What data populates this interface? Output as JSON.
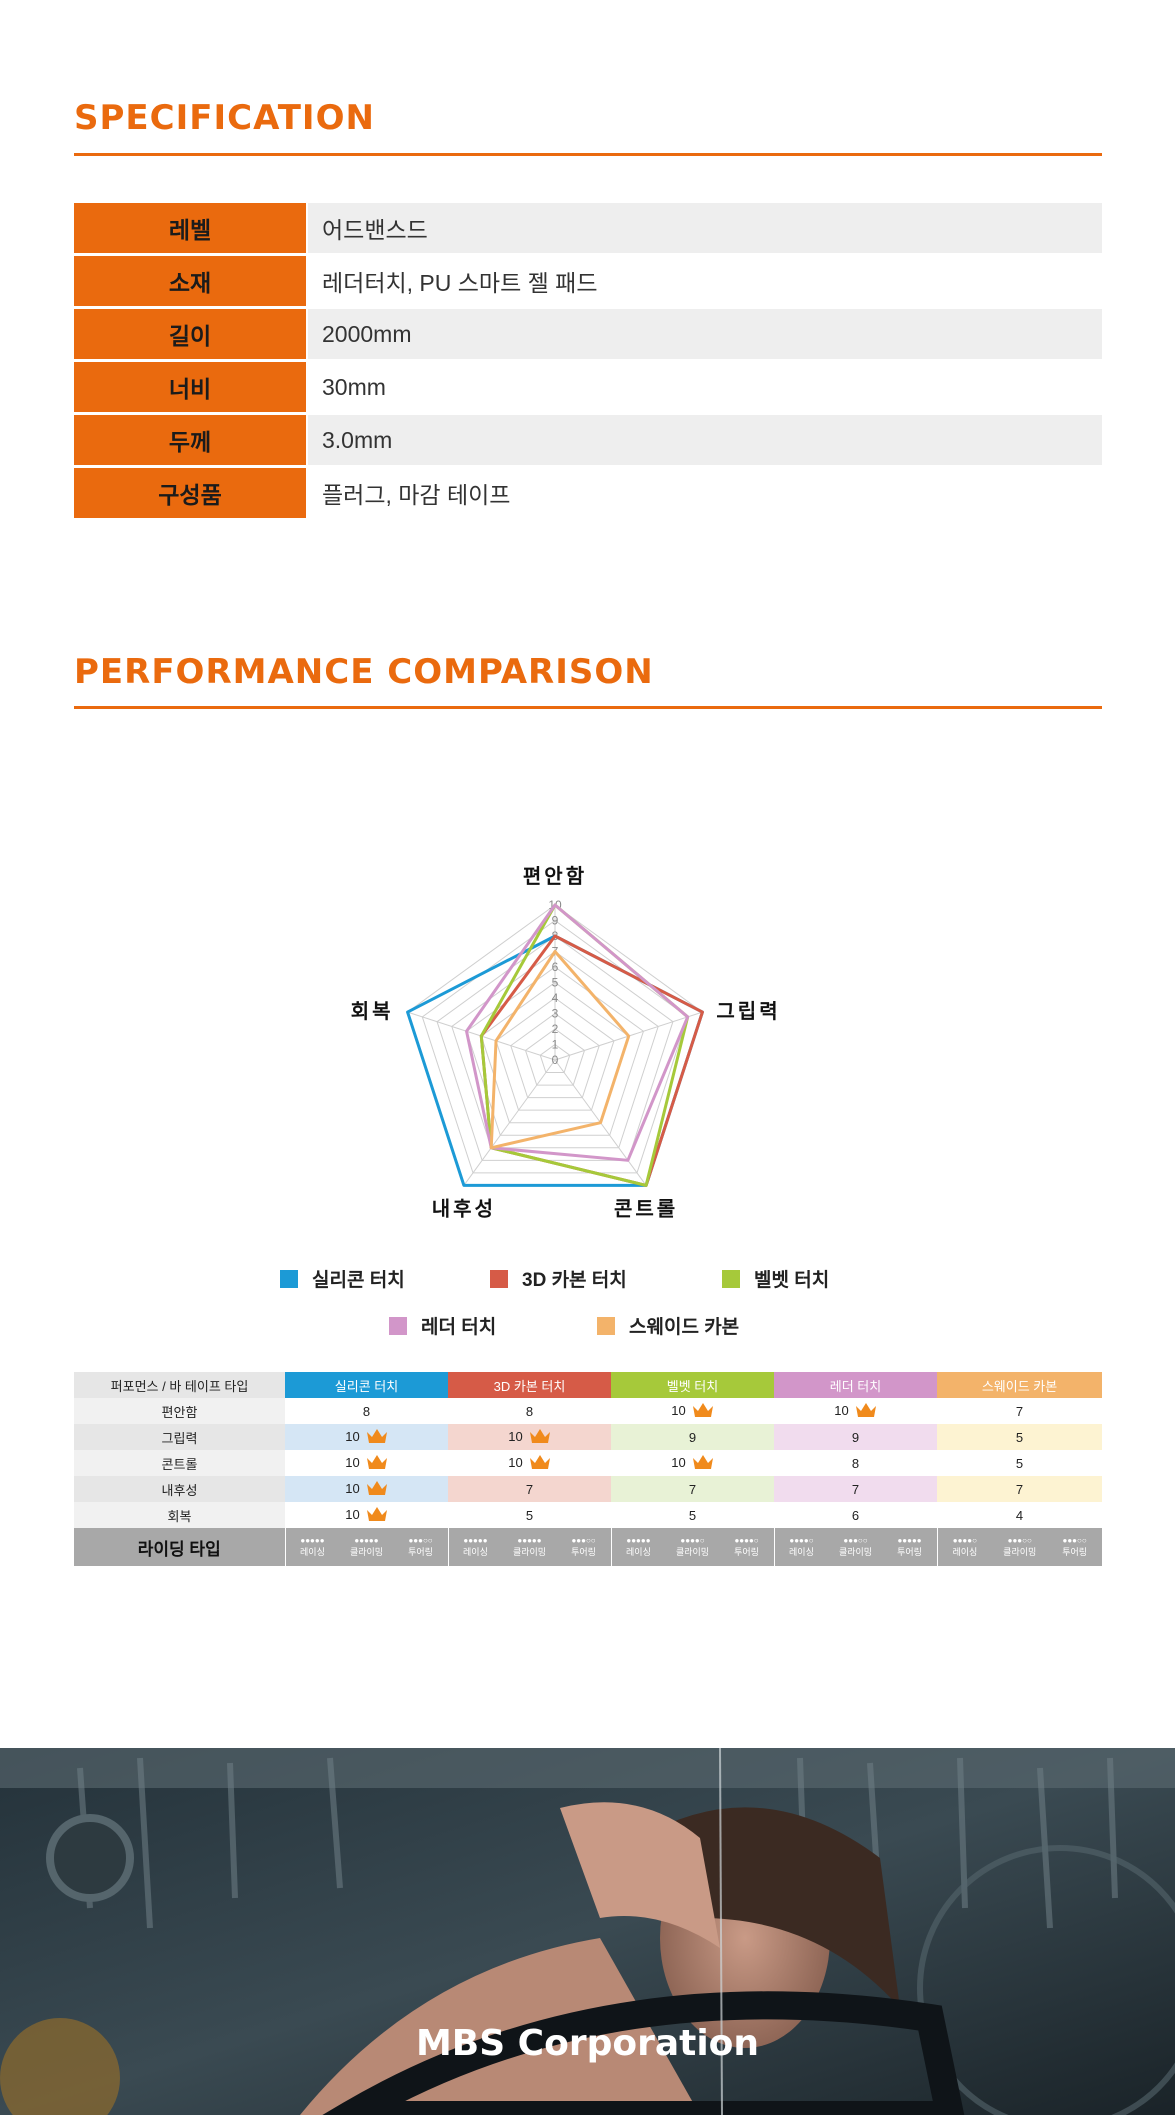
{
  "spec": {
    "title": "SPECIFICATION",
    "rows": [
      {
        "key": "레벨",
        "value": "어드밴스드"
      },
      {
        "key": "소재",
        "value": "레더터치, PU 스마트 젤 패드"
      },
      {
        "key": "길이",
        "value": "2000mm"
      },
      {
        "key": "너비",
        "value": "30mm"
      },
      {
        "key": "두께",
        "value": "3.0mm"
      },
      {
        "key": "구성품",
        "value": "플러그, 마감 테이프"
      }
    ]
  },
  "perf": {
    "title": "PERFORMANCE COMPARISON"
  },
  "chart_data": {
    "type": "radar",
    "axes": [
      "편안함",
      "그립력",
      "콘트롤",
      "내후성",
      "회복"
    ],
    "rlim": [
      0,
      10
    ],
    "ticks": [
      "0",
      "1",
      "2",
      "3",
      "4",
      "5",
      "6",
      "7",
      "8",
      "9",
      "10"
    ],
    "grid": true,
    "legend_position": "bottom",
    "series": [
      {
        "name": "실리콘 터치",
        "color": "#1c9ad6",
        "values": [
          8,
          10,
          10,
          10,
          10
        ]
      },
      {
        "name": "3D 카본 터치",
        "color": "#d65b47",
        "values": [
          8,
          10,
          10,
          7,
          5
        ]
      },
      {
        "name": "벨벳 터치",
        "color": "#a6c93a",
        "values": [
          10,
          9,
          10,
          7,
          5
        ]
      },
      {
        "name": "레더 터치",
        "color": "#d296c9",
        "values": [
          10,
          9,
          8,
          7,
          6
        ]
      },
      {
        "name": "스웨이드 카본",
        "color": "#f3b36a",
        "values": [
          7,
          5,
          5,
          7,
          4
        ]
      }
    ]
  },
  "table": {
    "corner": "퍼포먼스  / 바 테이프 타입",
    "columns": [
      {
        "name": "실리콘 터치",
        "color": "#1c9ad6",
        "tint": "#d5e6f5"
      },
      {
        "name": "3D 카본 터치",
        "color": "#d65b47",
        "tint": "#f4d6cf"
      },
      {
        "name": "벨벳 터치",
        "color": "#a6c93a",
        "tint": "#e8f2d6"
      },
      {
        "name": "레더 터치",
        "color": "#d296c9",
        "tint": "#f1dcee"
      },
      {
        "name": "스웨이드 카본",
        "color": "#f3b36a",
        "tint": "#fdf3d2"
      }
    ],
    "rows": [
      {
        "label": "편안함",
        "values": [
          "8",
          "8",
          "10",
          "10",
          "7"
        ],
        "crown": [
          false,
          false,
          true,
          true,
          false
        ]
      },
      {
        "label": "그립력",
        "values": [
          "10",
          "10",
          "9",
          "9",
          "5"
        ],
        "crown": [
          true,
          true,
          false,
          false,
          false
        ]
      },
      {
        "label": "콘트롤",
        "values": [
          "10",
          "10",
          "10",
          "8",
          "5"
        ],
        "crown": [
          true,
          true,
          true,
          false,
          false
        ]
      },
      {
        "label": "내후성",
        "values": [
          "10",
          "7",
          "7",
          "7",
          "7"
        ],
        "crown": [
          true,
          false,
          false,
          false,
          false
        ]
      },
      {
        "label": "회복",
        "values": [
          "10",
          "5",
          "5",
          "6",
          "4"
        ],
        "crown": [
          true,
          false,
          false,
          false,
          false
        ]
      }
    ],
    "riding": {
      "label": "라이딩 타입",
      "types": [
        "레이싱",
        "클라이밍",
        "투어링"
      ],
      "dots": [
        [
          "●●●●●",
          "●●●●●",
          "●●●○○"
        ],
        [
          "●●●●●",
          "●●●●●",
          "●●●○○"
        ],
        [
          "●●●●●",
          "●●●●○",
          "●●●●○"
        ],
        [
          "●●●●○",
          "●●●○○",
          "●●●●●"
        ],
        [
          "●●●●○",
          "●●●○○",
          "●●●○○"
        ]
      ]
    }
  },
  "photo": {
    "brand": "MBS Corporation"
  },
  "colors": {
    "accent": "#ea6a0e",
    "crown": "#f08a1c"
  }
}
